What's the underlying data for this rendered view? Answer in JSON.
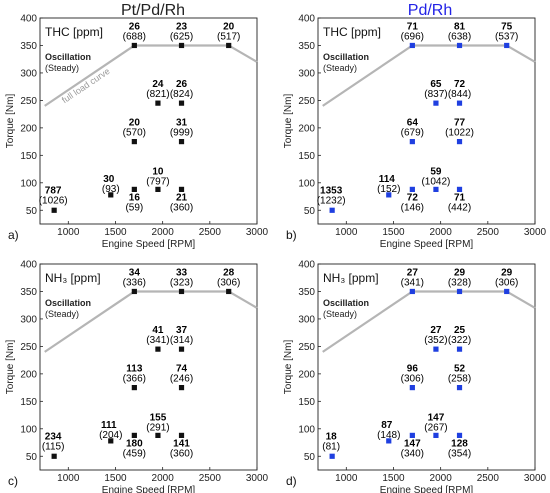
{
  "titles": [
    {
      "text": "Pt/Pd/Rh",
      "color": "#222222"
    },
    {
      "text": "Pd/Rh",
      "color": "#2323e6"
    }
  ],
  "full_load_label": "full load curve",
  "oscillation_label": "Oscillation",
  "steady_label": "(Steady)",
  "colors": {
    "marker_left": "#111111",
    "marker_right": "#1f3fe0",
    "curve": "#b5b5b5"
  },
  "chart_data": [
    {
      "type": "scatter",
      "panel": "a)",
      "pollutant": "THC [ppm]",
      "xlabel": "Engine Speed [RPM]",
      "ylabel": "Torque [Nm]",
      "xlim": [
        700,
        3000
      ],
      "ylim": [
        25,
        400
      ],
      "xticks": [
        1000,
        1500,
        2000,
        2500,
        3000
      ],
      "yticks": [
        50,
        100,
        150,
        200,
        250,
        300,
        350,
        400
      ],
      "marker_color": "#111111",
      "full_load_curve": {
        "x": [
          750,
          1700,
          2700,
          3000
        ],
        "y": [
          240,
          350,
          350,
          320
        ]
      },
      "points": [
        {
          "x": 850,
          "y": 50,
          "osc": "787",
          "steady": "(1026)"
        },
        {
          "x": 1450,
          "y": 78,
          "osc": "30",
          "steady": "(93)"
        },
        {
          "x": 1700,
          "y": 88,
          "osc": "16",
          "steady": "(59)"
        },
        {
          "x": 1950,
          "y": 88,
          "osc": "10",
          "steady": "(797)"
        },
        {
          "x": 2200,
          "y": 88,
          "osc": "21",
          "steady": "(360)"
        },
        {
          "x": 1700,
          "y": 175,
          "osc": "20",
          "steady": "(570)"
        },
        {
          "x": 2200,
          "y": 175,
          "osc": "31",
          "steady": "(999)"
        },
        {
          "x": 1950,
          "y": 245,
          "osc": "24",
          "steady": "(821)"
        },
        {
          "x": 2200,
          "y": 245,
          "osc": "26",
          "steady": "(824)"
        },
        {
          "x": 1700,
          "y": 350,
          "osc": "26",
          "steady": "(688)"
        },
        {
          "x": 2200,
          "y": 350,
          "osc": "23",
          "steady": "(625)"
        },
        {
          "x": 2700,
          "y": 350,
          "osc": "20",
          "steady": "(517)"
        }
      ]
    },
    {
      "type": "scatter",
      "panel": "b)",
      "pollutant": "THC [ppm]",
      "xlabel": "Engine Speed [RPM]",
      "ylabel": "Torque [Nm]",
      "xlim": [
        700,
        3000
      ],
      "ylim": [
        25,
        400
      ],
      "xticks": [
        1000,
        1500,
        2000,
        2500,
        3000
      ],
      "yticks": [
        50,
        100,
        150,
        200,
        250,
        300,
        350,
        400
      ],
      "marker_color": "#1f3fe0",
      "full_load_curve": {
        "x": [
          750,
          1700,
          2700,
          3000
        ],
        "y": [
          240,
          350,
          350,
          320
        ]
      },
      "points": [
        {
          "x": 850,
          "y": 50,
          "osc": "1353",
          "steady": "(1232)"
        },
        {
          "x": 1450,
          "y": 78,
          "osc": "114",
          "steady": "(152)"
        },
        {
          "x": 1700,
          "y": 88,
          "osc": "72",
          "steady": "(146)"
        },
        {
          "x": 1950,
          "y": 88,
          "osc": "59",
          "steady": "(1042)"
        },
        {
          "x": 2200,
          "y": 88,
          "osc": "71",
          "steady": "(442)"
        },
        {
          "x": 1700,
          "y": 175,
          "osc": "64",
          "steady": "(679)"
        },
        {
          "x": 2200,
          "y": 175,
          "osc": "77",
          "steady": "(1022)"
        },
        {
          "x": 1950,
          "y": 245,
          "osc": "65",
          "steady": "(837)"
        },
        {
          "x": 2200,
          "y": 245,
          "osc": "72",
          "steady": "(844)"
        },
        {
          "x": 1700,
          "y": 350,
          "osc": "71",
          "steady": "(696)"
        },
        {
          "x": 2200,
          "y": 350,
          "osc": "81",
          "steady": "(638)"
        },
        {
          "x": 2700,
          "y": 350,
          "osc": "75",
          "steady": "(537)"
        }
      ]
    },
    {
      "type": "scatter",
      "panel": "c)",
      "pollutant": "NH₃ [ppm]",
      "xlabel": "Engine Speed [RPM]",
      "ylabel": "Torque [Nm]",
      "xlim": [
        700,
        3000
      ],
      "ylim": [
        25,
        400
      ],
      "xticks": [
        1000,
        1500,
        2000,
        2500,
        3000
      ],
      "yticks": [
        50,
        100,
        150,
        200,
        250,
        300,
        350,
        400
      ],
      "marker_color": "#111111",
      "full_load_curve": {
        "x": [
          750,
          1700,
          2700,
          3000
        ],
        "y": [
          240,
          350,
          350,
          320
        ]
      },
      "points": [
        {
          "x": 850,
          "y": 50,
          "osc": "234",
          "steady": "(115)"
        },
        {
          "x": 1450,
          "y": 78,
          "osc": "111",
          "steady": "(204)"
        },
        {
          "x": 1700,
          "y": 88,
          "osc": "180",
          "steady": "(459)"
        },
        {
          "x": 1950,
          "y": 88,
          "osc": "155",
          "steady": "(291)"
        },
        {
          "x": 2200,
          "y": 88,
          "osc": "141",
          "steady": "(360)"
        },
        {
          "x": 1700,
          "y": 175,
          "osc": "113",
          "steady": "(366)"
        },
        {
          "x": 2200,
          "y": 175,
          "osc": "74",
          "steady": "(246)"
        },
        {
          "x": 1950,
          "y": 245,
          "osc": "41",
          "steady": "(341)"
        },
        {
          "x": 2200,
          "y": 245,
          "osc": "37",
          "steady": "(314)"
        },
        {
          "x": 1700,
          "y": 350,
          "osc": "34",
          "steady": "(336)"
        },
        {
          "x": 2200,
          "y": 350,
          "osc": "33",
          "steady": "(323)"
        },
        {
          "x": 2700,
          "y": 350,
          "osc": "28",
          "steady": "(306)"
        }
      ]
    },
    {
      "type": "scatter",
      "panel": "d)",
      "pollutant": "NH₃ [ppm]",
      "xlabel": "Engine Speed [RPM]",
      "ylabel": "Torque [Nm]",
      "xlim": [
        700,
        3000
      ],
      "ylim": [
        25,
        400
      ],
      "xticks": [
        1000,
        1500,
        2000,
        2500,
        3000
      ],
      "yticks": [
        50,
        100,
        150,
        200,
        250,
        300,
        350,
        400
      ],
      "marker_color": "#1f3fe0",
      "full_load_curve": {
        "x": [
          750,
          1700,
          2700,
          3000
        ],
        "y": [
          240,
          350,
          350,
          320
        ]
      },
      "points": [
        {
          "x": 850,
          "y": 50,
          "osc": "18",
          "steady": "(81)"
        },
        {
          "x": 1450,
          "y": 78,
          "osc": "87",
          "steady": "(148)"
        },
        {
          "x": 1700,
          "y": 88,
          "osc": "147",
          "steady": "(340)"
        },
        {
          "x": 1950,
          "y": 88,
          "osc": "147",
          "steady": "(267)"
        },
        {
          "x": 2200,
          "y": 88,
          "osc": "128",
          "steady": "(354)"
        },
        {
          "x": 1700,
          "y": 175,
          "osc": "96",
          "steady": "(306)"
        },
        {
          "x": 2200,
          "y": 175,
          "osc": "52",
          "steady": "(258)"
        },
        {
          "x": 1950,
          "y": 245,
          "osc": "27",
          "steady": "(352)"
        },
        {
          "x": 2200,
          "y": 245,
          "osc": "25",
          "steady": "(322)"
        },
        {
          "x": 1700,
          "y": 350,
          "osc": "27",
          "steady": "(341)"
        },
        {
          "x": 2200,
          "y": 350,
          "osc": "29",
          "steady": "(328)"
        },
        {
          "x": 2700,
          "y": 350,
          "osc": "29",
          "steady": "(306)"
        }
      ]
    }
  ]
}
